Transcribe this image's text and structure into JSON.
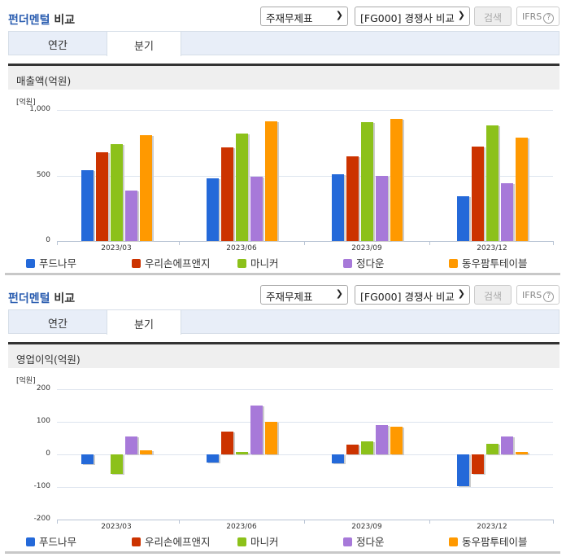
{
  "sections": [
    {
      "title_highlight": "펀더멘털",
      "title_rest": " 비교",
      "select_statement": "주재무제표",
      "select_compare": "[FG000] 경쟁사 비교",
      "search_label": "검색",
      "ifrs_label": "IFRS",
      "ifrs_help": "?",
      "tabs": [
        {
          "label": "연간",
          "active": false
        },
        {
          "label": "분기",
          "active": true
        }
      ],
      "panel_title": "매출액(억원)",
      "unit": "[억원]"
    },
    {
      "title_highlight": "펀더멘털",
      "title_rest": " 비교",
      "select_statement": "주재무제표",
      "select_compare": "[FG000] 경쟁사 비교",
      "search_label": "검색",
      "ifrs_label": "IFRS",
      "ifrs_help": "?",
      "tabs": [
        {
          "label": "연간",
          "active": false
        },
        {
          "label": "분기",
          "active": true
        }
      ],
      "panel_title": "영업이익(억원)",
      "unit": "[억원]"
    }
  ],
  "legend": [
    {
      "name": "푸드나무",
      "color": "#2469d9"
    },
    {
      "name": "우리손에프앤지",
      "color": "#cc3300"
    },
    {
      "name": "마니커",
      "color": "#8cc11a"
    },
    {
      "name": "정다운",
      "color": "#a779d9"
    },
    {
      "name": "동우팜투테이블",
      "color": "#ff9900"
    }
  ],
  "chart_data": [
    {
      "type": "bar",
      "title": "매출액(억원)",
      "ylabel": "[억원]",
      "categories": [
        "2023/03",
        "2023/06",
        "2023/09",
        "2023/12"
      ],
      "yticks": [
        "1,000",
        "500",
        "0"
      ],
      "ylim": [
        0,
        1000
      ],
      "grid": true,
      "legend_position": "bottom",
      "series": [
        {
          "name": "푸드나무",
          "values": [
            542,
            480,
            511,
            344
          ]
        },
        {
          "name": "우리손에프앤지",
          "values": [
            679,
            716,
            648,
            723
          ]
        },
        {
          "name": "마니커",
          "values": [
            741,
            822,
            907,
            884
          ]
        },
        {
          "name": "정다운",
          "values": [
            385,
            493,
            497,
            441
          ]
        },
        {
          "name": "동우팜투테이블",
          "values": [
            810,
            913,
            934,
            791
          ]
        }
      ]
    },
    {
      "type": "bar",
      "title": "영업이익(억원)",
      "ylabel": "[억원]",
      "categories": [
        "2023/03",
        "2023/06",
        "2023/09",
        "2023/12"
      ],
      "yticks": [
        "200",
        "100",
        "0",
        "-100",
        "-200"
      ],
      "ylim": [
        -200,
        200
      ],
      "grid": true,
      "legend_position": "bottom",
      "series": [
        {
          "name": "푸드나무",
          "values": [
            -31,
            -25,
            -28,
            -98
          ]
        },
        {
          "name": "우리손에프앤지",
          "values": [
            0,
            71,
            29,
            -59
          ]
        },
        {
          "name": "마니커",
          "values": [
            -61,
            8,
            39,
            32
          ]
        },
        {
          "name": "정다운",
          "values": [
            56,
            149,
            91,
            54
          ]
        },
        {
          "name": "동우팜투테이블",
          "values": [
            13,
            100,
            86,
            7
          ]
        }
      ]
    }
  ]
}
